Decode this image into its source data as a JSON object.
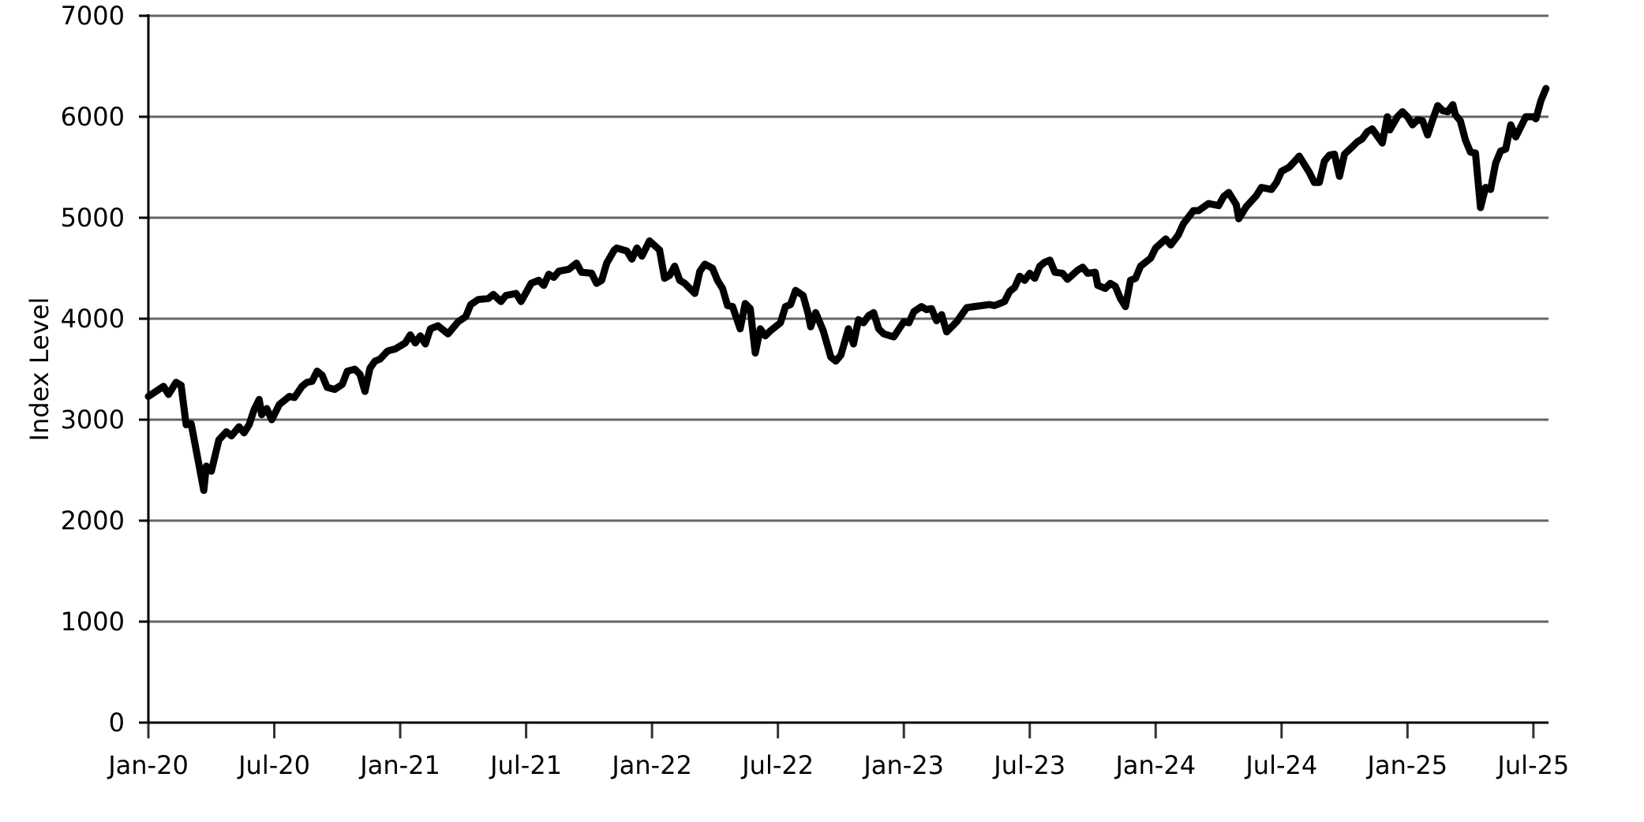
{
  "chart_data": {
    "type": "line",
    "y_label": "Index Level",
    "x": [
      2020.0,
      2020.03,
      2020.06,
      2020.08,
      2020.11,
      2020.13,
      2020.15,
      2020.17,
      2020.22,
      2020.23,
      2020.25,
      2020.28,
      2020.31,
      2020.33,
      2020.36,
      2020.38,
      2020.4,
      2020.42,
      2020.44,
      2020.45,
      2020.47,
      2020.49,
      2020.52,
      2020.56,
      2020.58,
      2020.61,
      2020.63,
      2020.65,
      2020.67,
      2020.69,
      2020.71,
      2020.74,
      2020.77,
      2020.79,
      2020.82,
      2020.84,
      2020.86,
      2020.88,
      2020.9,
      2020.92,
      2020.95,
      2020.98,
      2021.02,
      2021.04,
      2021.06,
      2021.08,
      2021.1,
      2021.12,
      2021.15,
      2021.19,
      2021.23,
      2021.26,
      2021.28,
      2021.31,
      2021.35,
      2021.37,
      2021.4,
      2021.42,
      2021.46,
      2021.48,
      2021.52,
      2021.55,
      2021.57,
      2021.59,
      2021.61,
      2021.63,
      2021.67,
      2021.7,
      2021.72,
      2021.76,
      2021.78,
      2021.8,
      2021.82,
      2021.85,
      2021.86,
      2021.9,
      2021.92,
      2021.94,
      2021.96,
      2021.99,
      2022.03,
      2022.05,
      2022.07,
      2022.09,
      2022.11,
      2022.13,
      2022.15,
      2022.17,
      2022.19,
      2022.21,
      2022.24,
      2022.26,
      2022.28,
      2022.3,
      2022.32,
      2022.35,
      2022.37,
      2022.39,
      2022.41,
      2022.43,
      2022.45,
      2022.47,
      2022.51,
      2022.53,
      2022.55,
      2022.57,
      2022.6,
      2022.62,
      2022.63,
      2022.65,
      2022.68,
      2022.71,
      2022.73,
      2022.75,
      2022.78,
      2022.8,
      2022.82,
      2022.84,
      2022.86,
      2022.88,
      2022.9,
      2022.92,
      2022.96,
      2023.0,
      2023.02,
      2023.04,
      2023.07,
      2023.09,
      2023.11,
      2023.13,
      2023.15,
      2023.17,
      2023.21,
      2023.25,
      2023.28,
      2023.31,
      2023.34,
      2023.36,
      2023.4,
      2023.42,
      2023.44,
      2023.46,
      2023.48,
      2023.5,
      2023.52,
      2023.54,
      2023.56,
      2023.58,
      2023.6,
      2023.63,
      2023.65,
      2023.69,
      2023.71,
      2023.73,
      2023.76,
      2023.77,
      2023.8,
      2023.82,
      2023.84,
      2023.86,
      2023.88,
      2023.9,
      2023.92,
      2023.94,
      2023.98,
      2024.0,
      2024.04,
      2024.06,
      2024.09,
      2024.11,
      2024.15,
      2024.17,
      2024.21,
      2024.25,
      2024.27,
      2024.29,
      2024.32,
      2024.33,
      2024.36,
      2024.4,
      2024.42,
      2024.46,
      2024.48,
      2024.5,
      2024.53,
      2024.56,
      2024.57,
      2024.59,
      2024.61,
      2024.63,
      2024.65,
      2024.67,
      2024.69,
      2024.71,
      2024.73,
      2024.75,
      2024.78,
      2024.8,
      2024.82,
      2024.84,
      2024.86,
      2024.9,
      2024.92,
      2024.93,
      2024.96,
      2024.98,
      2025.0,
      2025.02,
      2025.04,
      2025.06,
      2025.08,
      2025.1,
      2025.12,
      2025.14,
      2025.16,
      2025.18,
      2025.19,
      2025.21,
      2025.23,
      2025.25,
      2025.27,
      2025.29,
      2025.31,
      2025.33,
      2025.35,
      2025.37,
      2025.39,
      2025.41,
      2025.43,
      2025.47,
      2025.5,
      2025.51,
      2025.53,
      2025.55
    ],
    "series": [
      {
        "color": "#000000",
        "values": [
          3230,
          3280,
          3330,
          3250,
          3370,
          3340,
          2950,
          2960,
          2300,
          2540,
          2490,
          2800,
          2880,
          2840,
          2930,
          2870,
          2950,
          3100,
          3200,
          3050,
          3110,
          3000,
          3150,
          3230,
          3220,
          3330,
          3370,
          3380,
          3480,
          3440,
          3320,
          3300,
          3350,
          3480,
          3500,
          3450,
          3280,
          3510,
          3580,
          3600,
          3680,
          3700,
          3760,
          3840,
          3760,
          3830,
          3750,
          3900,
          3930,
          3850,
          3970,
          4020,
          4140,
          4190,
          4200,
          4240,
          4170,
          4230,
          4250,
          4170,
          4350,
          4380,
          4330,
          4440,
          4410,
          4470,
          4490,
          4550,
          4460,
          4450,
          4350,
          4380,
          4550,
          4680,
          4700,
          4670,
          4590,
          4700,
          4620,
          4770,
          4680,
          4400,
          4430,
          4520,
          4380,
          4350,
          4300,
          4250,
          4470,
          4540,
          4500,
          4380,
          4300,
          4130,
          4120,
          3900,
          4150,
          4100,
          3660,
          3900,
          3830,
          3880,
          3960,
          4120,
          4140,
          4280,
          4230,
          4050,
          3920,
          4060,
          3880,
          3620,
          3580,
          3640,
          3900,
          3750,
          3990,
          3960,
          4030,
          4060,
          3900,
          3850,
          3820,
          3970,
          3960,
          4070,
          4120,
          4090,
          4100,
          3980,
          4040,
          3870,
          3970,
          4110,
          4120,
          4130,
          4140,
          4130,
          4170,
          4270,
          4310,
          4420,
          4380,
          4450,
          4400,
          4520,
          4560,
          4580,
          4460,
          4450,
          4390,
          4480,
          4510,
          4450,
          4460,
          4330,
          4300,
          4350,
          4320,
          4200,
          4120,
          4380,
          4400,
          4520,
          4600,
          4700,
          4790,
          4730,
          4830,
          4940,
          5070,
          5070,
          5140,
          5120,
          5210,
          5250,
          5130,
          4990,
          5110,
          5220,
          5300,
          5280,
          5350,
          5460,
          5500,
          5580,
          5610,
          5530,
          5450,
          5350,
          5350,
          5560,
          5620,
          5630,
          5410,
          5630,
          5700,
          5750,
          5780,
          5850,
          5880,
          5740,
          6000,
          5870,
          6000,
          6050,
          6000,
          5920,
          5970,
          5960,
          5820,
          5970,
          6110,
          6060,
          6050,
          6120,
          6020,
          5960,
          5770,
          5650,
          5640,
          5100,
          5300,
          5280,
          5540,
          5660,
          5680,
          5920,
          5800,
          6000,
          6000,
          5980,
          6160,
          6280
        ]
      }
    ],
    "xlim": [
      2020,
      2025.56
    ],
    "xticks": [
      {
        "value": 2020,
        "label": "Jan-20"
      },
      {
        "value": 2020.5,
        "label": "Jul-20"
      },
      {
        "value": 2021,
        "label": "Jan-21"
      },
      {
        "value": 2021.5,
        "label": "Jul-21"
      },
      {
        "value": 2022,
        "label": "Jan-22"
      },
      {
        "value": 2022.5,
        "label": "Jul-22"
      },
      {
        "value": 2023,
        "label": "Jan-23"
      },
      {
        "value": 2023.5,
        "label": "Jul-23"
      },
      {
        "value": 2024,
        "label": "Jan-24"
      },
      {
        "value": 2024.5,
        "label": "Jul-24"
      },
      {
        "value": 2025,
        "label": "Jan-25"
      },
      {
        "value": 2025.5,
        "label": "Jul-25"
      }
    ],
    "ylim": [
      0,
      7000
    ],
    "yticks": [
      0,
      1000,
      2000,
      3000,
      4000,
      5000,
      6000,
      7000
    ],
    "grid": true
  }
}
